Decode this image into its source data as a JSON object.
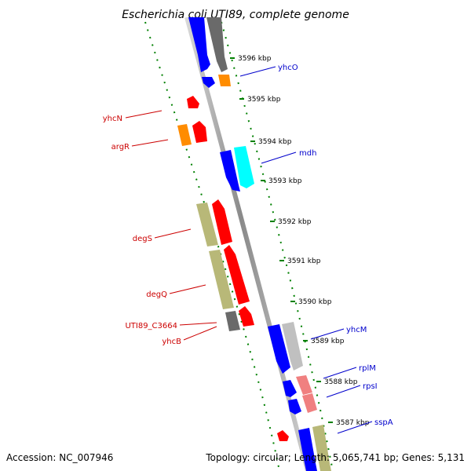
{
  "title": "Escherichia coli UTI89, complete genome",
  "footer": {
    "accession": "Accession: NC_007946",
    "topology": "Topology: circular; Length: 5,065,741 bp; Genes: 5,131"
  },
  "colors": {
    "blue": "#0000ff",
    "dark_gray": "#606060",
    "light_gray": "#c0c0c0",
    "orange": "#ff8c00",
    "red": "#ff0000",
    "cyan": "#00ffff",
    "khaki": "#b8b878",
    "pink": "#f08080",
    "label_blue": "#0000cc",
    "label_red": "#cc0000",
    "axis_green": "#008000"
  },
  "ticks": [
    {
      "label": "3596 kbp"
    },
    {
      "label": "3595 kbp"
    },
    {
      "label": "3594 kbp"
    },
    {
      "label": "3593 kbp"
    },
    {
      "label": "3592 kbp"
    },
    {
      "label": "3591 kbp"
    },
    {
      "label": "3590 kbp"
    },
    {
      "label": "3589 kbp"
    },
    {
      "label": "3588 kbp"
    },
    {
      "label": "3587 kbp"
    }
  ],
  "genes_right": [
    "yhcO",
    "mdh",
    "yhcM",
    "rplM",
    "rpsI",
    "sspA"
  ],
  "genes_left": [
    "yhcN",
    "argR",
    "degS",
    "degQ",
    "UTI89_C3664",
    "yhcB"
  ]
}
